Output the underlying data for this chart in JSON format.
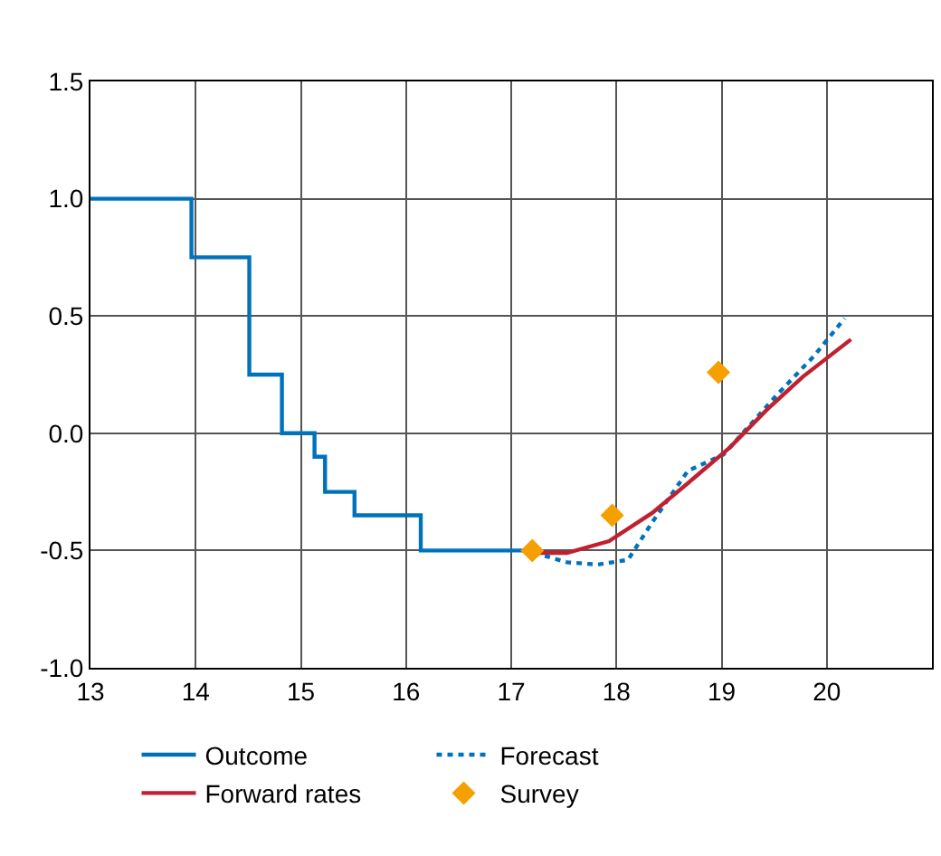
{
  "chart_data": {
    "type": "line",
    "series": [
      {
        "name": "Outcome",
        "type": "step",
        "color": "#0072bc",
        "line_style": "solid",
        "x": [
          13,
          13.96,
          14.51,
          14.82,
          15.13,
          15.23,
          15.51,
          16.14,
          17.22
        ],
        "values": [
          1.0,
          0.75,
          0.25,
          0.0,
          -0.1,
          -0.25,
          -0.35,
          -0.5,
          -0.5
        ]
      },
      {
        "name": "Forecast",
        "color": "#0072bc",
        "line_style": "dotted",
        "x": [
          17.22,
          17.53,
          17.82,
          18.11,
          18.34,
          18.68,
          19.02,
          19.2,
          19.54,
          19.88,
          20.17
        ],
        "values": [
          -0.51,
          -0.55,
          -0.56,
          -0.54,
          -0.38,
          -0.16,
          -0.09,
          0.0,
          0.17,
          0.33,
          0.49
        ]
      },
      {
        "name": "Forward rates",
        "color": "#c0202f",
        "line_style": "solid",
        "x": [
          17.22,
          17.53,
          17.93,
          18.34,
          18.74,
          19.08,
          19.43,
          19.77,
          20.23
        ],
        "values": [
          -0.51,
          -0.51,
          -0.46,
          -0.34,
          -0.19,
          -0.06,
          0.1,
          0.24,
          0.4
        ]
      },
      {
        "name": "Survey",
        "type": "scatter",
        "color": "#f5a000",
        "marker": "diamond",
        "x": [
          17.2,
          17.96,
          18.97
        ],
        "values": [
          -0.5,
          -0.35,
          0.26
        ]
      }
    ],
    "xlim": [
      13,
      21
    ],
    "xticks": [
      13,
      14,
      15,
      16,
      17,
      18,
      19,
      20
    ],
    "ylim": [
      -1.0,
      1.5
    ],
    "yticks": [
      {
        "value": -1.0,
        "label": "-1.0"
      },
      {
        "value": -0.5,
        "label": "-0.5"
      },
      {
        "value": 0.0,
        "label": "0.0"
      },
      {
        "value": 0.5,
        "label": "0.5"
      },
      {
        "value": 1.0,
        "label": "1.0"
      },
      {
        "value": 1.5,
        "label": "1.5"
      }
    ],
    "grid": true,
    "legend": "bottom"
  }
}
